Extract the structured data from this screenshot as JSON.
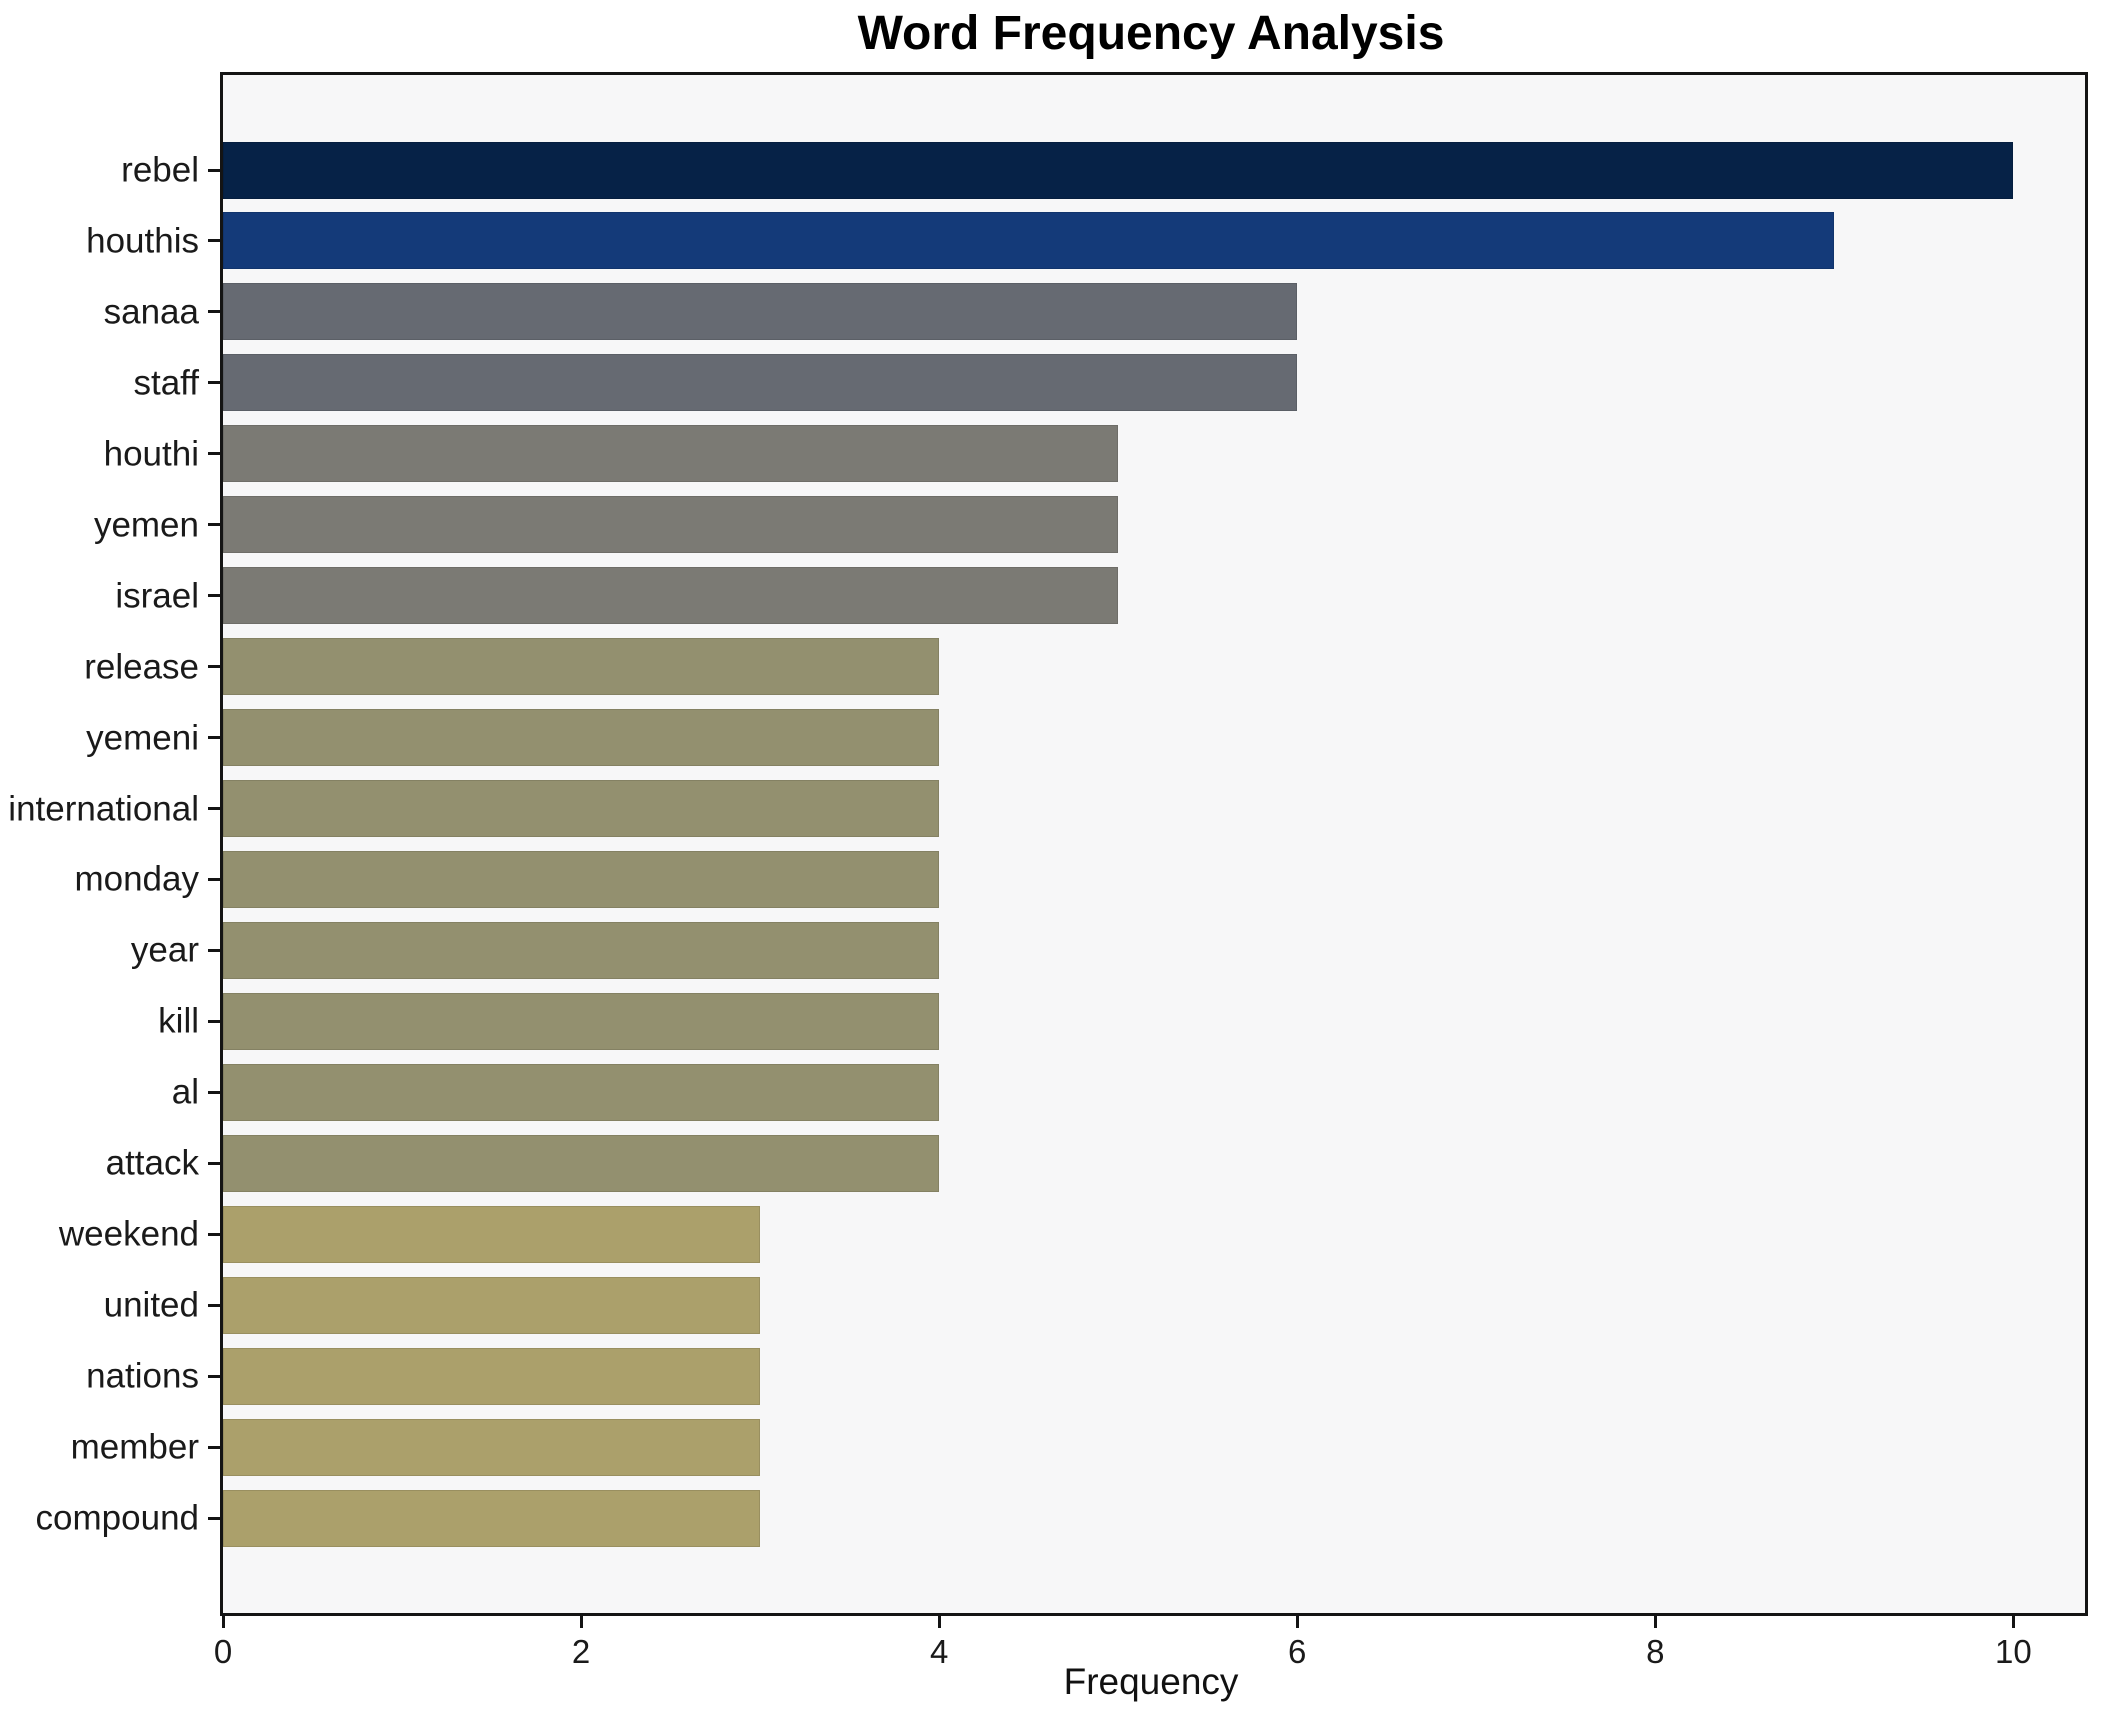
{
  "chart_data": {
    "type": "bar",
    "orientation": "horizontal",
    "title": "Word Frequency Analysis",
    "xlabel": "Frequency",
    "ylabel": "",
    "categories": [
      "rebel",
      "houthis",
      "sanaa",
      "staff",
      "houthi",
      "yemen",
      "israel",
      "release",
      "yemeni",
      "international",
      "monday",
      "year",
      "kill",
      "al",
      "attack",
      "weekend",
      "united",
      "nations",
      "member",
      "compound"
    ],
    "values": [
      10,
      9,
      6,
      6,
      5,
      5,
      5,
      4,
      4,
      4,
      4,
      4,
      4,
      4,
      4,
      3,
      3,
      3,
      3,
      3
    ],
    "bar_colors": [
      "#062247",
      "#143a79",
      "#666a72",
      "#666a72",
      "#7b7a74",
      "#7b7a74",
      "#7b7a74",
      "#93906f",
      "#93906f",
      "#93906f",
      "#93906f",
      "#93906f",
      "#93906f",
      "#93906f",
      "#93906f",
      "#aba06b",
      "#aba06b",
      "#aba06b",
      "#aba06b",
      "#aba06b"
    ],
    "xticks": [
      0,
      2,
      4,
      6,
      8,
      10
    ],
    "xlim": [
      0,
      10.4
    ],
    "grid": false,
    "legend_position": "none",
    "plot_background": "#f7f7f8",
    "figure_background": "#ffffff",
    "axis_color": "#141414",
    "text_color": "#1a1a1a"
  }
}
